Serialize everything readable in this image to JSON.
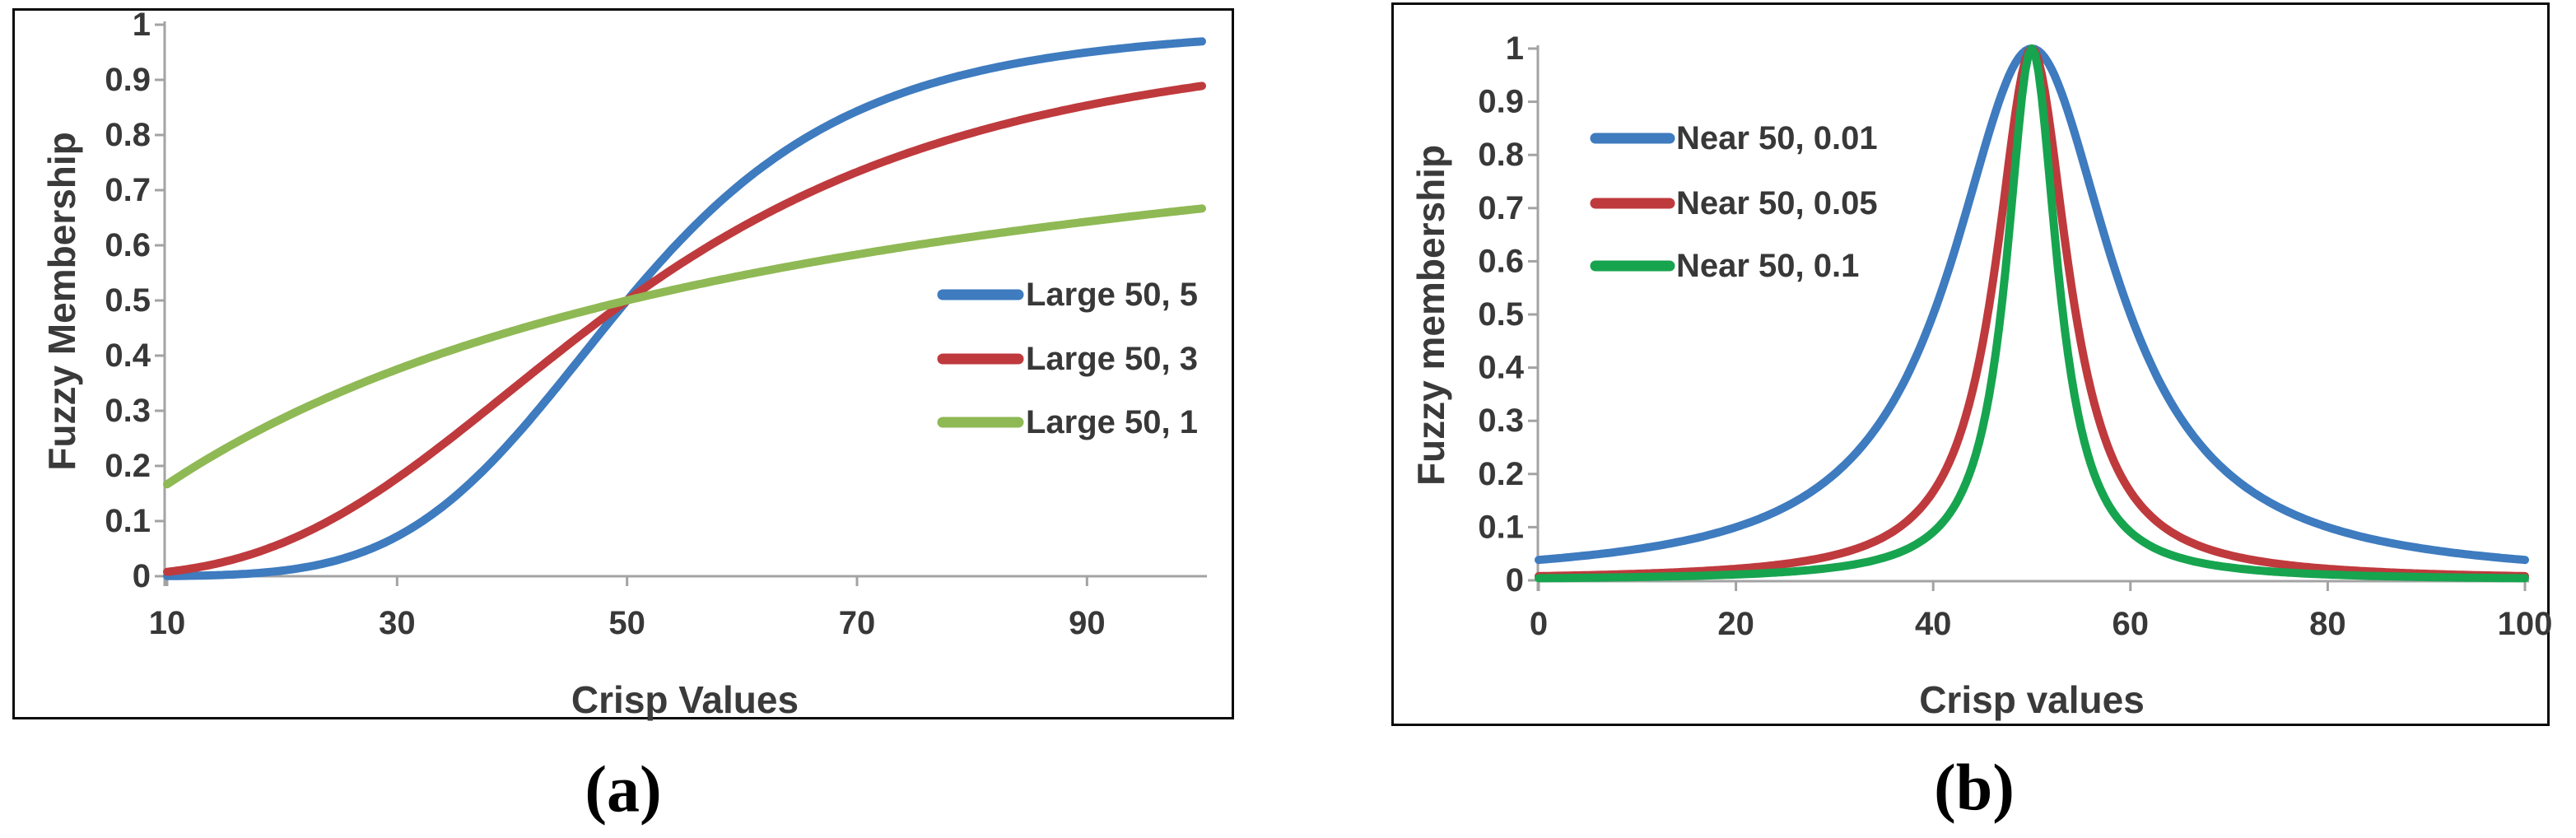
{
  "colors": {
    "background": "#ffffff",
    "frame_border": "#0a0a0a",
    "axis_line": "#a3a3a3",
    "tick_text": "#383838",
    "caption_text": "#000000"
  },
  "chart_data": [
    {
      "id": "a",
      "type": "line",
      "caption": "(a)",
      "title": "",
      "xlabel": "Crisp Values",
      "ylabel": "Fuzzy Membership",
      "xlim": [
        10,
        100
      ],
      "ylim": [
        0,
        1
      ],
      "grid": false,
      "legend_position": "inside-right-middle",
      "x_tick_values": [
        10,
        30,
        50,
        70,
        90
      ],
      "x_tick_labels": [
        "10",
        "30",
        "50",
        "70",
        "90"
      ],
      "y_tick_values": [
        0,
        0.1,
        0.2,
        0.3,
        0.4,
        0.5,
        0.6,
        0.7,
        0.8,
        0.9,
        1
      ],
      "y_tick_labels": [
        "0",
        "0.1",
        "0.2",
        "0.3",
        "0.4",
        "0.5",
        "0.6",
        "0.7",
        "0.8",
        "0.9",
        "1"
      ],
      "series": [
        {
          "name": "Large 50, 5",
          "color": "#3e7bbf",
          "function": "large",
          "midpoint": 50,
          "spread": 5,
          "x": [
            10,
            20,
            30,
            40,
            50,
            60,
            70,
            80,
            90,
            100
          ],
          "values": [
            0.0003,
            0.0101,
            0.0722,
            0.2468,
            0.5,
            0.7133,
            0.8432,
            0.9129,
            0.9497,
            0.9697
          ]
        },
        {
          "name": "Large 50, 3",
          "color": "#bf3a3d",
          "function": "large",
          "midpoint": 50,
          "spread": 3,
          "x": [
            10,
            20,
            30,
            40,
            50,
            60,
            70,
            80,
            90,
            100
          ],
          "values": [
            0.0079,
            0.0602,
            0.1776,
            0.3386,
            0.5,
            0.6334,
            0.7329,
            0.8038,
            0.8536,
            0.8889
          ]
        },
        {
          "name": "Large 50, 1",
          "color": "#8fb954",
          "function": "large",
          "midpoint": 50,
          "spread": 1,
          "x": [
            10,
            20,
            30,
            40,
            50,
            60,
            70,
            80,
            90,
            100
          ],
          "values": [
            0.1667,
            0.2857,
            0.375,
            0.4444,
            0.5,
            0.5455,
            0.5833,
            0.6154,
            0.6429,
            0.6667
          ]
        }
      ]
    },
    {
      "id": "b",
      "type": "line",
      "caption": "(b)",
      "title": "",
      "xlabel": "Crisp values",
      "ylabel": "Fuzzy membership",
      "xlim": [
        0,
        100
      ],
      "ylim": [
        0,
        1
      ],
      "grid": false,
      "legend_position": "inside-left-top",
      "x_tick_values": [
        0,
        20,
        40,
        60,
        80,
        100
      ],
      "x_tick_labels": [
        "0",
        "20",
        "40",
        "60",
        "80",
        "100"
      ],
      "y_tick_values": [
        0,
        0.1,
        0.2,
        0.3,
        0.4,
        0.5,
        0.6,
        0.7,
        0.8,
        0.9,
        1
      ],
      "y_tick_labels": [
        "0",
        "0.1",
        "0.2",
        "0.3",
        "0.4",
        "0.5",
        "0.6",
        "0.7",
        "0.8",
        "0.9",
        "1"
      ],
      "series": [
        {
          "name": "Near 50, 0.01",
          "color": "#3e7bbf",
          "function": "near",
          "midpoint": 50,
          "spread": 0.01,
          "x": [
            0,
            10,
            20,
            30,
            40,
            50,
            60,
            70,
            80,
            90,
            100
          ],
          "values": [
            0.0385,
            0.0588,
            0.1,
            0.2,
            0.5,
            1,
            0.5,
            0.2,
            0.1,
            0.0588,
            0.0385
          ]
        },
        {
          "name": "Near 50, 0.05",
          "color": "#bf3a3d",
          "function": "near",
          "midpoint": 50,
          "spread": 0.05,
          "x": [
            0,
            10,
            20,
            30,
            40,
            50,
            60,
            70,
            80,
            90,
            100
          ],
          "values": [
            0.0079,
            0.0124,
            0.0217,
            0.0476,
            0.1667,
            1,
            0.1667,
            0.0476,
            0.0217,
            0.0124,
            0.0079
          ]
        },
        {
          "name": "Near 50, 0.1",
          "color": "#17a44f",
          "function": "near",
          "midpoint": 50,
          "spread": 0.1,
          "x": [
            0,
            10,
            20,
            30,
            40,
            50,
            60,
            70,
            80,
            90,
            100
          ],
          "values": [
            0.004,
            0.0062,
            0.011,
            0.0244,
            0.0909,
            1,
            0.0909,
            0.0244,
            0.011,
            0.0062,
            0.004
          ]
        }
      ]
    }
  ]
}
